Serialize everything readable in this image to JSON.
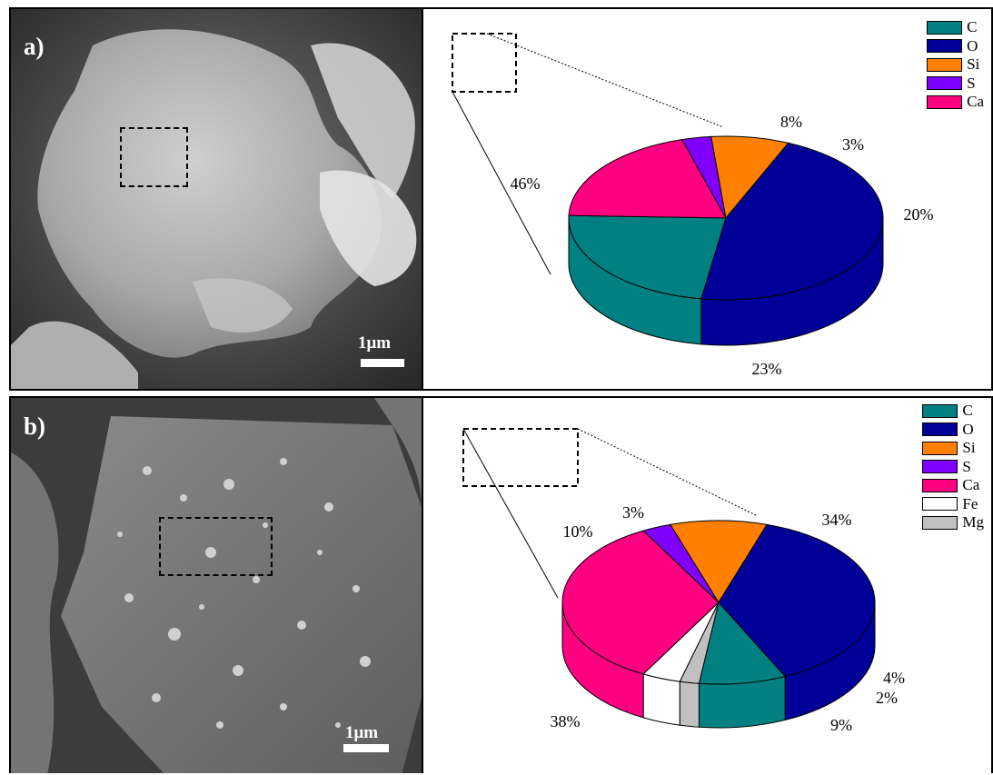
{
  "colors": {
    "C": "#008080",
    "O": "#000099",
    "Si": "#ff8000",
    "S": "#8000ff",
    "Ca": "#ff0080",
    "Fe": "#ffffff",
    "Mg": "#c0c0c0"
  },
  "panel_a": {
    "label": "a)",
    "scale_text": "1μm"
  },
  "panel_b": {
    "label": "b)",
    "scale_text": "1μm"
  },
  "chart_data": [
    {
      "type": "pie",
      "categories": [
        "C",
        "O",
        "Si",
        "S",
        "Ca"
      ],
      "values": [
        23,
        46,
        8,
        3,
        20
      ],
      "labels": [
        "23%",
        "46%",
        "8%",
        "3%",
        "20%"
      ],
      "legend": [
        "C",
        "O",
        "Si",
        "S",
        "Ca"
      ],
      "legend_position": "top-right",
      "style": "3d"
    },
    {
      "type": "pie",
      "categories": [
        "C",
        "O",
        "Si",
        "S",
        "Ca",
        "Fe",
        "Mg"
      ],
      "values": [
        9,
        38,
        10,
        3,
        34,
        4,
        2
      ],
      "labels": [
        "9%",
        "38%",
        "10%",
        "3%",
        "34%",
        "4%",
        "2%"
      ],
      "legend": [
        "C",
        "O",
        "Si",
        "S",
        "Ca",
        "Fe",
        "Mg"
      ],
      "legend_position": "top-right",
      "style": "3d"
    }
  ]
}
